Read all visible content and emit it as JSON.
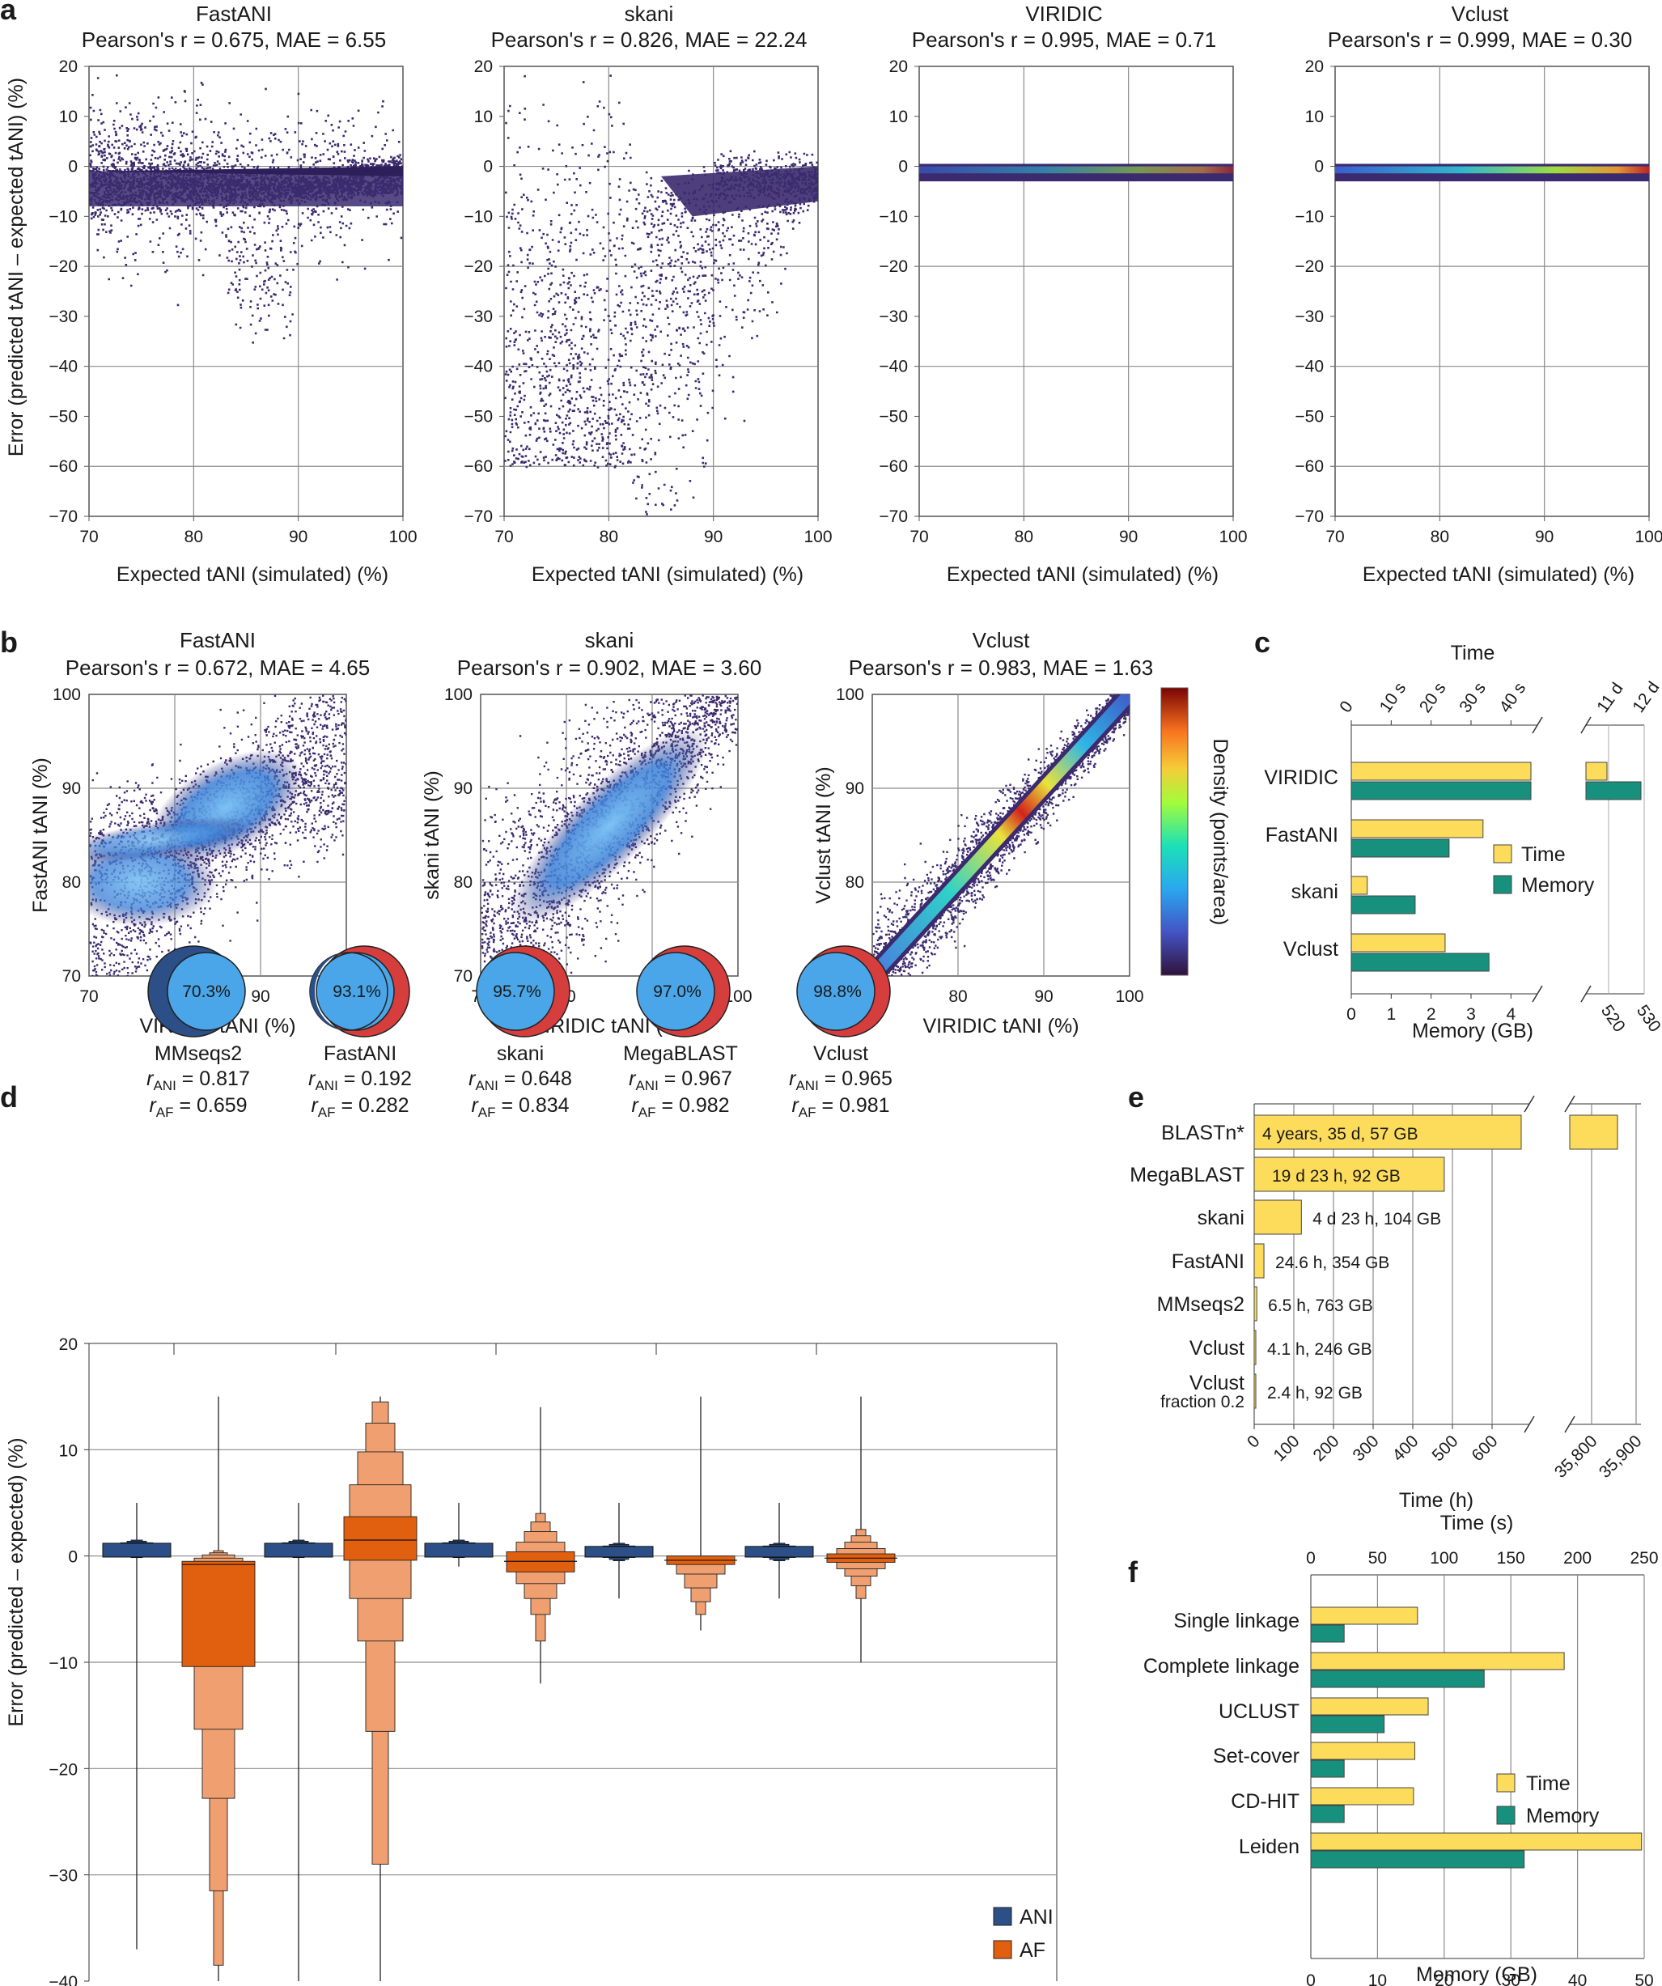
{
  "panel_letters": [
    "a",
    "b",
    "c",
    "d",
    "e",
    "f"
  ],
  "colors": {
    "dots": "#3b2a6e",
    "ani": "#2b4f86",
    "af": "#e0600f",
    "af_light": "#f0a070",
    "time": "#fddc5c",
    "memory": "#17917d",
    "venn_inner": "#4aa6e8",
    "venn_ani": "#2b4f86",
    "venn_af": "#d63d3d"
  },
  "chart_data": [
    {
      "id": "a",
      "type": "scatter",
      "ylabel": "Error (predicted tANI – expected tANI) (%)",
      "xlabel": "Expected tANI (simulated) (%)",
      "xlim": [
        70,
        100
      ],
      "ylim": [
        -70,
        20
      ],
      "xticks": [
        "70",
        "80",
        "90",
        "100"
      ],
      "yticks": [
        "20",
        "10",
        "0",
        "−10",
        "−20",
        "−30",
        "−40",
        "−50",
        "−60",
        "−70"
      ],
      "subplots": [
        {
          "tool": "FastANI",
          "stat": "Pearson's r = 0.675, MAE = 6.55"
        },
        {
          "tool": "skani",
          "stat": "Pearson's r = 0.826, MAE = 22.24"
        },
        {
          "tool": "VIRIDIC",
          "stat": "Pearson's r = 0.995, MAE = 0.71"
        },
        {
          "tool": "Vclust",
          "stat": "Pearson's r = 0.999, MAE = 0.30"
        }
      ]
    },
    {
      "id": "b",
      "type": "scatter",
      "xlabel": "VIRIDIC tANI (%)",
      "xlim": [
        70,
        100
      ],
      "ylim": [
        70,
        100
      ],
      "xticks": [
        "70",
        "80",
        "90",
        "100"
      ],
      "yticks": [
        "100",
        "90",
        "80",
        "70"
      ],
      "colorbar_label": "Density (points/area)",
      "subplots": [
        {
          "tool": "FastANI",
          "stat": "Pearson's r = 0.672, MAE = 4.65",
          "ylabel": "FastANI tANI (%)"
        },
        {
          "tool": "skani",
          "stat": "Pearson's r = 0.902, MAE = 3.60",
          "ylabel": "skani tANI (%)"
        },
        {
          "tool": "Vclust",
          "stat": "Pearson's r = 0.983, MAE = 1.63",
          "ylabel": "Vclust tANI (%)"
        }
      ]
    },
    {
      "id": "c",
      "type": "bar",
      "title": "Time",
      "xlabel": "Memory (GB)",
      "time_ticks": [
        "0",
        "10 s",
        "20 s",
        "30 s",
        "40 s",
        "11 d",
        "12 d"
      ],
      "memory_ticks": [
        "0",
        "1",
        "2",
        "3",
        "4",
        "520",
        "530"
      ],
      "categories": [
        "VIRIDIC",
        "FastANI",
        "skani",
        "Vclust"
      ],
      "series": [
        {
          "name": "Time",
          "values": [
            45,
            33,
            4,
            23.5
          ],
          "broken_values": [
            11.6,
            null,
            null,
            null
          ]
        },
        {
          "name": "Memory",
          "values": [
            4.5,
            2.45,
            1.6,
            3.45
          ],
          "broken_values": [
            529,
            null,
            null,
            null
          ]
        }
      ],
      "legend": [
        "Time",
        "Memory"
      ]
    },
    {
      "id": "d",
      "type": "boxen",
      "ylabel": "Error (predicted – expected) (%)",
      "ylim": [
        -40,
        20
      ],
      "yticks": [
        "20",
        "10",
        "0",
        "−10",
        "−20",
        "−30",
        "−40"
      ],
      "legend": [
        "ANI",
        "AF"
      ],
      "tools": [
        {
          "name": "MMseqs2",
          "overlap": "70.3%",
          "r_ani": "= 0.817",
          "r_af": "= 0.659",
          "ani_median": 0.5,
          "af_median": -0.8,
          "af_q1": -10.4,
          "af_q3": -0.5
        },
        {
          "name": "FastANI",
          "overlap": "93.1%",
          "r_ani": "= 0.192",
          "r_af": "= 0.282",
          "ani_median": 0.5,
          "af_median": 1.5,
          "af_q1": -0.4,
          "af_q3": 3.7
        },
        {
          "name": "skani",
          "overlap": "95.7%",
          "r_ani": "= 0.648",
          "r_af": "= 0.834",
          "ani_median": 0.5,
          "af_median": -0.5,
          "af_q1": -1.5,
          "af_q3": 0.4
        },
        {
          "name": "MegaBLAST",
          "overlap": "97.0%",
          "r_ani": "= 0.967",
          "r_af": "= 0.982",
          "ani_median": 0.2,
          "af_median": -0.4,
          "af_q1": -0.8,
          "af_q3": 0.0
        },
        {
          "name": "Vclust",
          "overlap": "98.8%",
          "r_ani": "= 0.965",
          "r_af": "= 0.981",
          "ani_median": 0.2,
          "af_median": -0.2,
          "af_q1": -0.6,
          "af_q3": 0.2
        }
      ],
      "r_ani_prefix": "r",
      "r_ani_sub": "ANI",
      "r_af_sub": "AF"
    },
    {
      "id": "e",
      "type": "bar",
      "xlabel": "Time (h)",
      "xticks": [
        "0",
        "100",
        "200",
        "300",
        "400",
        "500",
        "600",
        "35,800",
        "35,900"
      ],
      "categories": [
        "BLASTn*",
        "MegaBLAST",
        "skani",
        "FastANI",
        "MMseqs2",
        "Vclust",
        "Vclust"
      ],
      "category_sub": [
        "",
        "",
        "",
        "",
        "",
        "",
        "fraction 0.2"
      ],
      "values": [
        35890,
        479.4,
        119,
        24.6,
        6.5,
        4.1,
        2.4
      ],
      "labels": [
        "4 years, 35 d, 57 GB",
        "19 d 23 h, 92 GB",
        "4 d 23 h, 104 GB",
        "24.6 h, 354 GB",
        "6.5 h, 763 GB",
        "4.1 h, 246 GB",
        "2.4 h, 92 GB"
      ]
    },
    {
      "id": "f",
      "type": "bar",
      "title": "Time (s)",
      "xlabel": "Memory (GB)",
      "time_ticks": [
        "0",
        "50",
        "100",
        "150",
        "200",
        "250"
      ],
      "memory_ticks": [
        "0",
        "10",
        "20",
        "30",
        "40",
        "50"
      ],
      "categories": [
        "Single linkage",
        "Complete linkage",
        "UCLUST",
        "Set-cover",
        "CD-HIT",
        "Leiden"
      ],
      "series": [
        {
          "name": "Time",
          "values": [
            80,
            190,
            88,
            78,
            77,
            248
          ]
        },
        {
          "name": "Memory",
          "values": [
            5,
            26,
            11,
            5,
            5,
            32
          ]
        }
      ],
      "legend": [
        "Time",
        "Memory"
      ]
    }
  ]
}
